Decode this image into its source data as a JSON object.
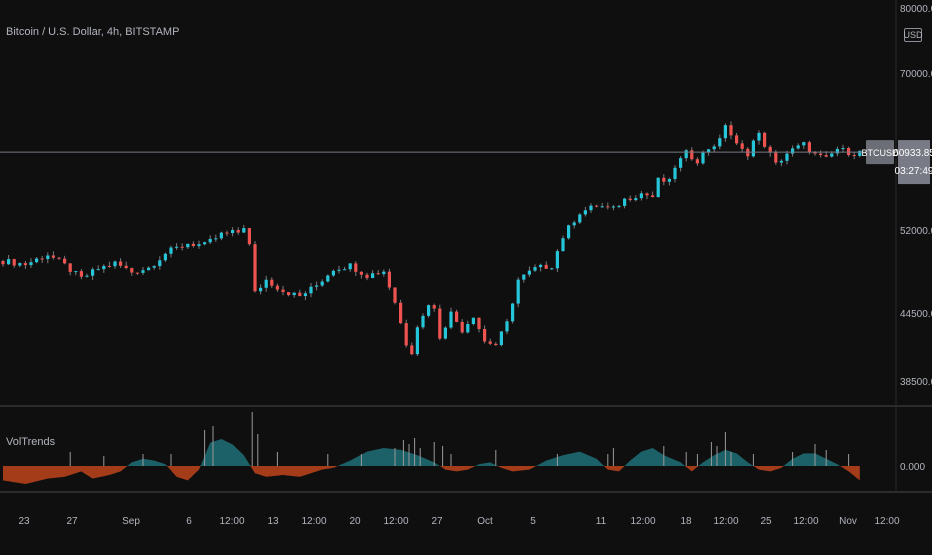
{
  "title": "Bitcoin / U.S. Dollar, 4h, BITSTAMP",
  "currency_button": "USD",
  "colors": {
    "up": "#26c6da",
    "down": "#ef5350",
    "wick": "#7a7a7a",
    "bg": "#0f0f0f",
    "axis_text": "#b2b5be",
    "last_line": "#787b86",
    "vol_pos": "#1e6f78",
    "vol_neg": "#c0441b",
    "spike": "#9a9a9a"
  },
  "chart_data": [
    {
      "type": "candlestick",
      "title": "Bitcoin / U.S. Dollar, 4h, BITSTAMP",
      "y_ticks": [
        "80000.00",
        "70000.00",
        "52000.00",
        "44500.00",
        "38500.00"
      ],
      "y_scale": "log",
      "ylim": [
        36000,
        80000
      ],
      "x_ticks": [
        "23",
        "27",
        "Sep",
        "6",
        "12:00",
        "13",
        "12:00",
        "20",
        "12:00",
        "27",
        "Oct",
        "5",
        "11",
        "12:00",
        "18",
        "12:00",
        "25",
        "12:00",
        "Nov",
        "12:00"
      ],
      "last_price": {
        "symbol": "BTCUSD",
        "price": "60933.85",
        "countdown": "03:27:49",
        "value": 60933.85
      },
      "close_path": [
        [
          0,
          49200
        ],
        [
          4,
          48900
        ],
        [
          8,
          49800
        ],
        [
          11,
          48800
        ],
        [
          14,
          47600
        ],
        [
          17,
          48500
        ],
        [
          20,
          49000
        ],
        [
          23,
          48200
        ],
        [
          26,
          48600
        ],
        [
          29,
          49900
        ],
        [
          33,
          50800
        ],
        [
          36,
          50600
        ],
        [
          39,
          51600
        ],
        [
          42,
          51800
        ],
        [
          43.5,
          52700
        ],
        [
          44.5,
          48500
        ],
        [
          45,
          46300
        ],
        [
          47,
          47500
        ],
        [
          50,
          46500
        ],
        [
          53,
          46000
        ],
        [
          56,
          47000
        ],
        [
          59,
          48500
        ],
        [
          62,
          48800
        ],
        [
          65,
          47900
        ],
        [
          68,
          48300
        ],
        [
          70,
          45500
        ],
        [
          71,
          43600
        ],
        [
          72,
          41800
        ],
        [
          73,
          41100
        ],
        [
          74,
          43400
        ],
        [
          75,
          44200
        ],
        [
          76.5,
          46000
        ],
        [
          78,
          42400
        ],
        [
          80,
          44500
        ],
        [
          82,
          43000
        ],
        [
          84,
          44300
        ],
        [
          86,
          42000
        ],
        [
          88,
          41700
        ],
        [
          90,
          43600
        ],
        [
          92,
          47500
        ],
        [
          95,
          48500
        ],
        [
          98,
          48800
        ],
        [
          100,
          51400
        ],
        [
          103,
          54000
        ],
        [
          106,
          54800
        ],
        [
          109,
          54400
        ],
        [
          111,
          55500
        ],
        [
          114,
          56200
        ],
        [
          116,
          55800
        ],
        [
          117,
          57700
        ],
        [
          119,
          57500
        ],
        [
          120,
          59300
        ],
        [
          122,
          60800
        ],
        [
          124,
          60000
        ],
        [
          126,
          61400
        ],
        [
          128,
          62200
        ],
        [
          129,
          64200
        ],
        [
          130,
          62900
        ],
        [
          131,
          61700
        ],
        [
          132,
          61100
        ],
        [
          133,
          60800
        ],
        [
          134,
          62200
        ],
        [
          135,
          62900
        ],
        [
          136,
          61800
        ],
        [
          138,
          59500
        ],
        [
          140,
          60800
        ],
        [
          142,
          61500
        ],
        [
          143,
          61800
        ],
        [
          145,
          60600
        ],
        [
          147,
          60100
        ],
        [
          149,
          61300
        ],
        [
          150,
          61100
        ],
        [
          152,
          60800
        ],
        [
          153,
          60933.85
        ]
      ]
    },
    {
      "type": "area",
      "title": "VolTrends",
      "y_ticks": [
        "0.000"
      ],
      "values": [
        [
          0,
          -0.8
        ],
        [
          4,
          -1.0
        ],
        [
          8,
          -0.7
        ],
        [
          11,
          -0.6
        ],
        [
          14,
          -0.3
        ],
        [
          16,
          -0.7
        ],
        [
          19,
          -0.5
        ],
        [
          21,
          -0.3
        ],
        [
          23,
          0.2
        ],
        [
          25,
          0.4
        ],
        [
          27,
          0.3
        ],
        [
          29,
          0.1
        ],
        [
          31,
          -0.6
        ],
        [
          33,
          -0.8
        ],
        [
          35,
          -0.2
        ],
        [
          37,
          1.3
        ],
        [
          39,
          1.5
        ],
        [
          41,
          1.2
        ],
        [
          43,
          0.6
        ],
        [
          45,
          -0.4
        ],
        [
          47,
          -0.6
        ],
        [
          50,
          -0.5
        ],
        [
          53,
          -0.6
        ],
        [
          55,
          -0.4
        ],
        [
          57,
          -0.2
        ],
        [
          59,
          -0.1
        ],
        [
          62,
          0.3
        ],
        [
          65,
          0.8
        ],
        [
          68,
          1.0
        ],
        [
          71,
          0.9
        ],
        [
          74,
          0.6
        ],
        [
          77,
          0.2
        ],
        [
          79,
          -0.2
        ],
        [
          81,
          -0.3
        ],
        [
          83,
          -0.2
        ],
        [
          85,
          0.1
        ],
        [
          87,
          0.2
        ],
        [
          89,
          -0.1
        ],
        [
          91,
          -0.3
        ],
        [
          94,
          -0.2
        ],
        [
          97,
          0.3
        ],
        [
          100,
          0.6
        ],
        [
          103,
          0.8
        ],
        [
          106,
          0.4
        ],
        [
          108,
          -0.2
        ],
        [
          110,
          -0.3
        ],
        [
          112,
          0.3
        ],
        [
          114,
          0.8
        ],
        [
          116,
          1.0
        ],
        [
          118,
          0.6
        ],
        [
          121,
          0.2
        ],
        [
          123,
          -0.3
        ],
        [
          125,
          0.2
        ],
        [
          127,
          0.6
        ],
        [
          129,
          0.9
        ],
        [
          131,
          0.7
        ],
        [
          133,
          0.2
        ],
        [
          135,
          -0.2
        ],
        [
          137,
          -0.3
        ],
        [
          139,
          -0.1
        ],
        [
          141,
          0.4
        ],
        [
          143,
          0.7
        ],
        [
          145,
          0.7
        ],
        [
          147,
          0.4
        ],
        [
          149,
          0.1
        ],
        [
          151,
          -0.3
        ],
        [
          153,
          -0.8
        ]
      ],
      "spikes": [
        [
          12,
          0.35
        ],
        [
          18,
          0.25
        ],
        [
          25,
          0.3
        ],
        [
          30,
          0.3
        ],
        [
          36,
          0.9
        ],
        [
          37.5,
          1.0
        ],
        [
          44.5,
          1.35
        ],
        [
          45.5,
          0.8
        ],
        [
          49,
          0.35
        ],
        [
          58,
          0.3
        ],
        [
          64,
          0.3
        ],
        [
          70,
          0.45
        ],
        [
          71.5,
          0.65
        ],
        [
          72.5,
          0.55
        ],
        [
          73.5,
          0.7
        ],
        [
          74.5,
          0.45
        ],
        [
          77,
          0.6
        ],
        [
          78.5,
          0.5
        ],
        [
          80,
          0.3
        ],
        [
          88,
          0.4
        ],
        [
          99,
          0.3
        ],
        [
          108,
          0.3
        ],
        [
          109,
          0.45
        ],
        [
          118,
          0.5
        ],
        [
          122,
          0.35
        ],
        [
          124,
          0.3
        ],
        [
          126.5,
          0.6
        ],
        [
          127.5,
          0.5
        ],
        [
          129,
          0.85
        ],
        [
          130,
          0.35
        ],
        [
          134,
          0.3
        ],
        [
          141,
          0.35
        ],
        [
          145,
          0.55
        ],
        [
          147,
          0.4
        ],
        [
          151,
          0.3
        ]
      ]
    }
  ]
}
